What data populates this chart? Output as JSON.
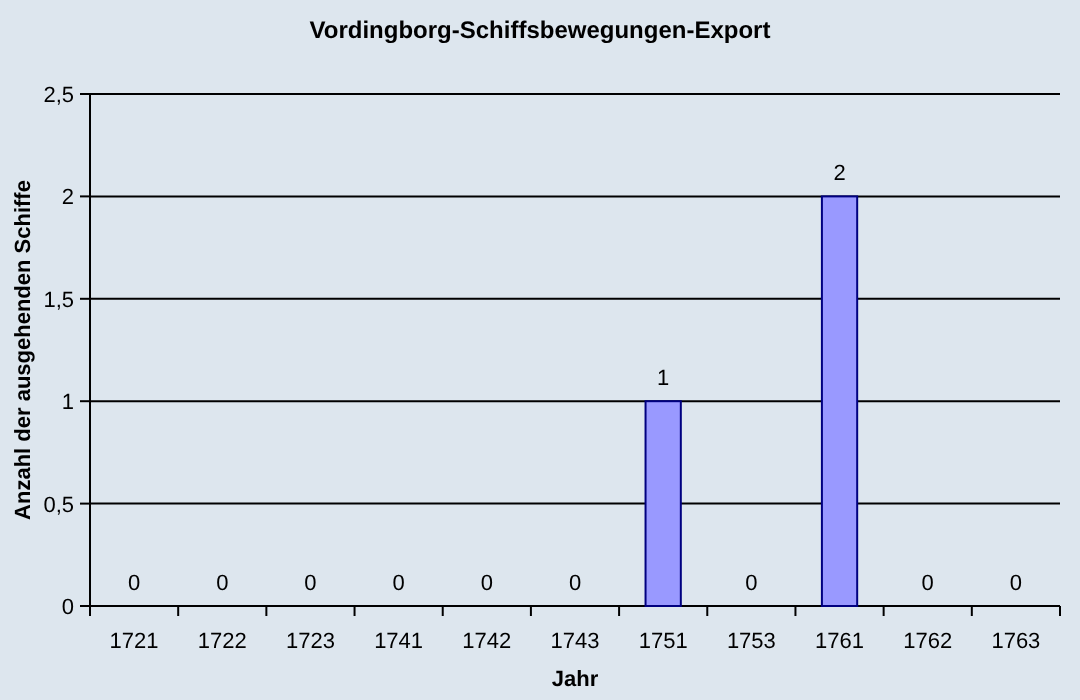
{
  "chart_data": {
    "type": "bar",
    "title": "Vordingborg-Schiffsbewegungen-Export",
    "xlabel": "Jahr",
    "ylabel": "Anzahl der ausgehenden Schiffe",
    "categories": [
      "1721",
      "1722",
      "1723",
      "1741",
      "1742",
      "1743",
      "1751",
      "1753",
      "1761",
      "1762",
      "1763"
    ],
    "values": [
      0,
      0,
      0,
      0,
      0,
      0,
      1,
      0,
      2,
      0,
      0
    ],
    "color": "#9999ff",
    "ylim": [
      0,
      2.5
    ],
    "yticks": [
      0,
      {
        "value": 0.5,
        "label": "0,5"
      },
      1,
      {
        "value": 1.5,
        "label": "1,5"
      },
      2,
      {
        "value": 2.5,
        "label": "2,5"
      }
    ],
    "grid": "y",
    "data_labels": true
  }
}
